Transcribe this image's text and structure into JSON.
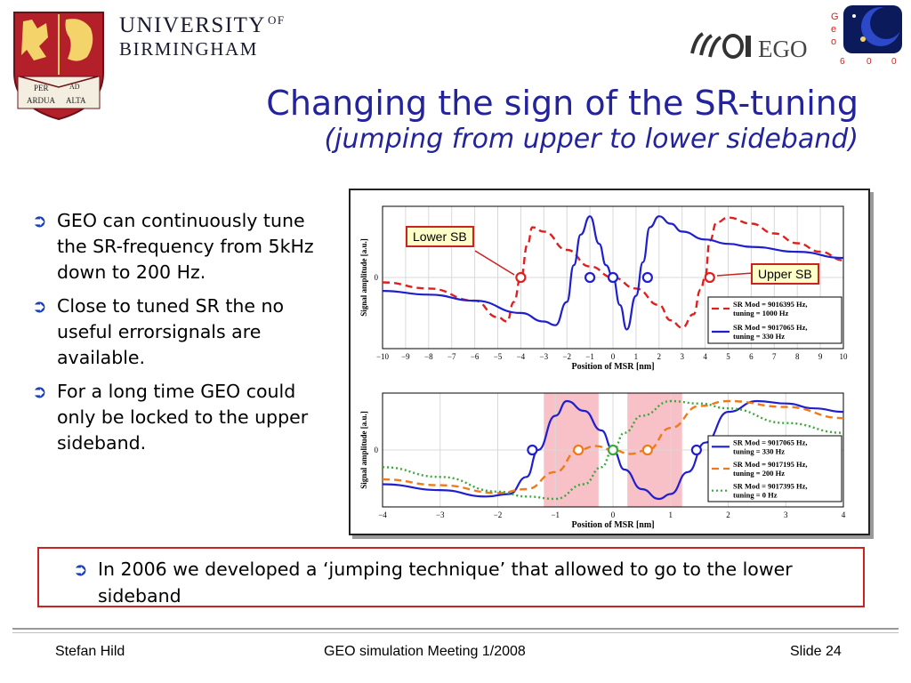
{
  "header": {
    "university_line1": "UNIVERSITY",
    "university_of": "OF",
    "university_line2": "BIRMINGHAM",
    "crest_motto_1": "PER",
    "crest_motto_2": "AD",
    "crest_motto_3": "ARDUA",
    "crest_motto_4": "ALTA",
    "ego_text": "EGO",
    "geo_letters": [
      "G",
      "e",
      "o"
    ],
    "geo_number": [
      "6",
      "0",
      "0"
    ]
  },
  "title": {
    "line1": "Changing the sign of the SR-tuning",
    "line2": "(jumping from upper to lower sideband)"
  },
  "bullets": [
    "GEO can continuously tune the SR-frequency from 5kHz down to 200 Hz.",
    "Close to tuned SR the no useful errorsignals are available.",
    "For a long time GEO could only be locked to the upper sideband."
  ],
  "highlight_bullet": "In 2006 we developed a ‘jumping technique’ that allowed to go to the lower sideband",
  "footer": {
    "author": "Stefan Hild",
    "meeting": "GEO simulation Meeting 1/2008",
    "slide": "Slide 24"
  },
  "colors": {
    "title": "#23239b",
    "bullet_arrow": "#1a3fb8",
    "box_border": "#cc2222",
    "series_blue": "#1f1fcf",
    "series_red": "#e02020",
    "series_orange": "#f07a1a",
    "series_green": "#3aa83a",
    "band_pink": "#f7b6bd"
  },
  "chart_data": [
    {
      "type": "line",
      "xlabel": "Position of MSR [nm]",
      "ylabel": "Signal amplitude [a.u.]",
      "xlim": [
        -10,
        10
      ],
      "xticks": [
        -10,
        -9,
        -8,
        -7,
        -6,
        -5,
        -4,
        -3,
        -2,
        -1,
        0,
        1,
        2,
        3,
        4,
        5,
        6,
        7,
        8,
        9,
        10
      ],
      "yticks": [
        "0"
      ],
      "grid": true,
      "legend_position": "bottom-right",
      "callouts": [
        "Lower SB",
        "Upper SB"
      ],
      "series": [
        {
          "name": "SR Mod = 9016395 Hz, tuning = 1000 Hz",
          "style": "dashed",
          "color": "#e02020",
          "x": [
            -10,
            -8,
            -6,
            -5,
            -4.6,
            -4.3,
            -4,
            -3.7,
            -3.5,
            -3,
            -2,
            -1,
            0,
            1,
            2,
            2.5,
            3,
            3.5,
            3.8,
            4,
            4.2,
            4.5,
            5,
            6,
            7,
            8,
            9,
            10
          ],
          "y": [
            -0.08,
            -0.18,
            -0.38,
            -0.65,
            -0.72,
            -0.4,
            0,
            0.55,
            0.82,
            0.75,
            0.45,
            0.18,
            0,
            -0.18,
            -0.45,
            -0.7,
            -0.82,
            -0.6,
            -0.2,
            0,
            0.6,
            0.9,
            0.98,
            0.88,
            0.72,
            0.56,
            0.42,
            0.28
          ]
        },
        {
          "name": "SR Mod = 9017065 Hz, tuning = 330 Hz",
          "style": "solid",
          "color": "#1f1fcf",
          "x": [
            -10,
            -8,
            -6,
            -4,
            -3,
            -2.5,
            -2,
            -1.7,
            -1.4,
            -1,
            -0.6,
            -0.3,
            0,
            0.3,
            0.6,
            1,
            1.3,
            1.6,
            2,
            2.5,
            3,
            4,
            5,
            6,
            8,
            10
          ],
          "y": [
            -0.22,
            -0.28,
            -0.38,
            -0.58,
            -0.72,
            -0.78,
            -0.4,
            0.2,
            0.7,
            1,
            0.55,
            0.2,
            0,
            -0.45,
            -0.85,
            -0.3,
            0.25,
            0.82,
            1,
            0.88,
            0.75,
            0.62,
            0.55,
            0.5,
            0.42,
            0.32
          ]
        }
      ],
      "markers": [
        {
          "x": -4,
          "y": 0,
          "color": "#e02020"
        },
        {
          "x": -1,
          "y": 0,
          "color": "#1f1fcf"
        },
        {
          "x": 0,
          "y": 0,
          "color": "#1f1fcf"
        },
        {
          "x": 1.5,
          "y": 0,
          "color": "#1f1fcf"
        },
        {
          "x": 4.2,
          "y": 0,
          "color": "#e02020"
        }
      ]
    },
    {
      "type": "line",
      "xlabel": "Position of MSR [nm]",
      "ylabel": "Signal amplitude [a.u.]",
      "xlim": [
        -4,
        4
      ],
      "xticks": [
        -4,
        -3,
        -2,
        -1,
        0,
        1,
        2,
        3,
        4
      ],
      "yticks": [
        "0"
      ],
      "grid": true,
      "legend_position": "bottom-right",
      "bands": [
        [
          -1.2,
          -0.25
        ],
        [
          0.25,
          1.2
        ]
      ],
      "series": [
        {
          "name": "SR Mod = 9017065 Hz, tuning = 330 Hz",
          "style": "solid",
          "color": "#1f1fcf",
          "x": [
            -4,
            -3,
            -2.2,
            -1.8,
            -1.5,
            -1.3,
            -1,
            -0.8,
            -0.5,
            -0.2,
            0,
            0.2,
            0.5,
            0.8,
            1,
            1.3,
            1.6,
            2,
            2.5,
            3,
            3.5,
            4
          ],
          "y": [
            -0.7,
            -0.82,
            -0.95,
            -0.9,
            -0.55,
            0,
            0.7,
            1,
            0.8,
            0.4,
            0,
            -0.4,
            -0.8,
            -1,
            -0.9,
            -0.45,
            0.15,
            0.78,
            1,
            0.95,
            0.85,
            0.78
          ]
        },
        {
          "name": "SR Mod = 9017195 Hz, tuning = 200 Hz",
          "style": "dashed",
          "color": "#f07a1a",
          "x": [
            -4,
            -3,
            -2,
            -1.5,
            -1,
            -0.6,
            -0.3,
            0,
            0.3,
            0.6,
            1,
            1.5,
            2,
            3,
            4
          ],
          "y": [
            -0.6,
            -0.72,
            -0.88,
            -0.8,
            -0.45,
            0,
            0.08,
            0,
            -0.08,
            0,
            0.45,
            0.9,
            1,
            0.88,
            0.65
          ]
        },
        {
          "name": "SR Mod = 9017395 Hz, tuning = 0 Hz",
          "style": "dotted",
          "color": "#3aa83a",
          "x": [
            -4,
            -3,
            -2,
            -1.5,
            -1,
            -0.5,
            -0.2,
            0,
            0.2,
            0.5,
            1,
            1.5,
            2,
            3,
            4
          ],
          "y": [
            -0.35,
            -0.55,
            -0.85,
            -0.95,
            -1,
            -0.7,
            -0.35,
            0,
            0.35,
            0.7,
            1,
            0.95,
            0.85,
            0.55,
            0.35
          ]
        }
      ],
      "markers": [
        {
          "x": -1.4,
          "y": 0,
          "color": "#1f1fcf"
        },
        {
          "x": -0.6,
          "y": 0,
          "color": "#f07a1a"
        },
        {
          "x": 0,
          "y": 0,
          "color": "#3aa83a"
        },
        {
          "x": 0.6,
          "y": 0,
          "color": "#f07a1a"
        },
        {
          "x": 1.45,
          "y": 0,
          "color": "#1f1fcf"
        }
      ]
    }
  ]
}
